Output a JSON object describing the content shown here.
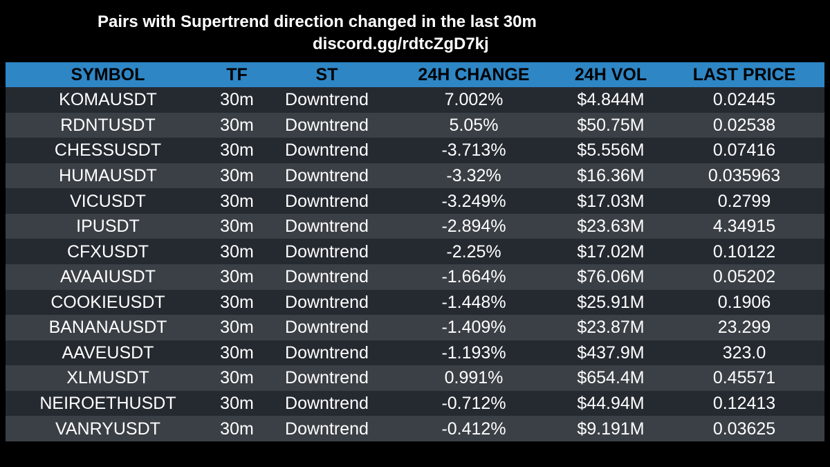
{
  "header": {
    "title": "Pairs with Supertrend direction changed in the last 30m",
    "subtitle": "discord.gg/rdtcZgD7kj"
  },
  "colors": {
    "background": "#000000",
    "header_row": "#2e86c5",
    "row_dark": "#252a31",
    "row_light": "#3b4046",
    "text": "#ffffff",
    "header_text": "#000000"
  },
  "table": {
    "columns": [
      "SYMBOL",
      "TF",
      "ST",
      "24H CHANGE",
      "24H VOL",
      "LAST PRICE"
    ],
    "rows": [
      [
        "KOMAUSDT",
        "30m",
        "Downtrend",
        "7.002%",
        "$4.844M",
        "0.02445"
      ],
      [
        "RDNTUSDT",
        "30m",
        "Downtrend",
        "5.05%",
        "$50.75M",
        "0.02538"
      ],
      [
        "CHESSUSDT",
        "30m",
        "Downtrend",
        "-3.713%",
        "$5.556M",
        "0.07416"
      ],
      [
        "HUMAUSDT",
        "30m",
        "Downtrend",
        "-3.32%",
        "$16.36M",
        "0.035963"
      ],
      [
        "VICUSDT",
        "30m",
        "Downtrend",
        "-3.249%",
        "$17.03M",
        "0.2799"
      ],
      [
        "IPUSDT",
        "30m",
        "Downtrend",
        "-2.894%",
        "$23.63M",
        "4.34915"
      ],
      [
        "CFXUSDT",
        "30m",
        "Downtrend",
        "-2.25%",
        "$17.02M",
        "0.10122"
      ],
      [
        "AVAAIUSDT",
        "30m",
        "Downtrend",
        "-1.664%",
        "$76.06M",
        "0.05202"
      ],
      [
        "COOKIEUSDT",
        "30m",
        "Downtrend",
        "-1.448%",
        "$25.91M",
        "0.1906"
      ],
      [
        "BANANAUSDT",
        "30m",
        "Downtrend",
        "-1.409%",
        "$23.87M",
        "23.299"
      ],
      [
        "AAVEUSDT",
        "30m",
        "Downtrend",
        "-1.193%",
        "$437.9M",
        "323.0"
      ],
      [
        "XLMUSDT",
        "30m",
        "Downtrend",
        "0.991%",
        "$654.4M",
        "0.45571"
      ],
      [
        "NEIROETHUSDT",
        "30m",
        "Downtrend",
        "-0.712%",
        "$44.94M",
        "0.12413"
      ],
      [
        "VANRYUSDT",
        "30m",
        "Downtrend",
        "-0.412%",
        "$9.191M",
        "0.03625"
      ]
    ]
  }
}
